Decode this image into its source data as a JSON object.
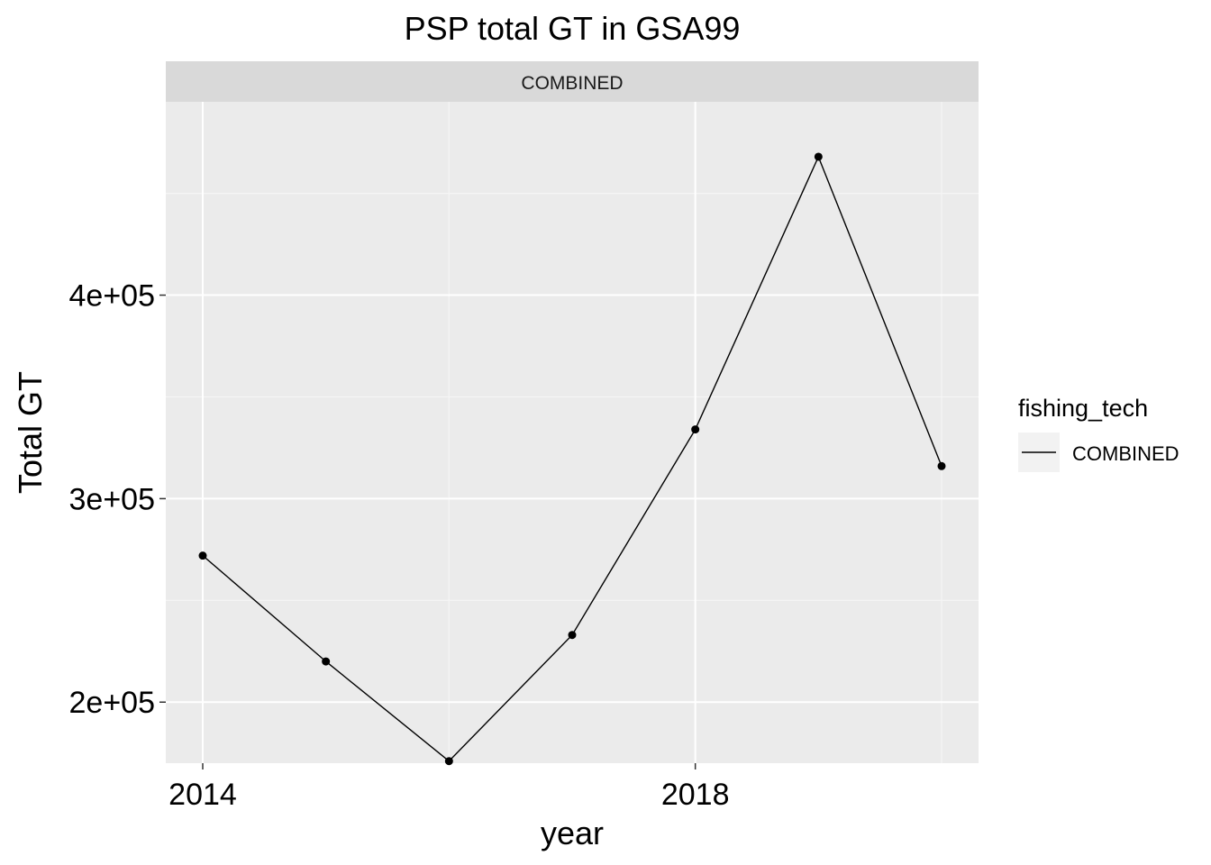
{
  "chart_data": {
    "type": "line",
    "title": "PSP total GT in GSA99",
    "xlabel": "year",
    "ylabel": "Total GT",
    "facet_label": "COMBINED",
    "legend": {
      "title": "fishing_tech",
      "position": "right",
      "entries": [
        "COMBINED"
      ]
    },
    "x_ticks": [
      2014,
      2018
    ],
    "y_ticks": [
      200000,
      300000,
      400000
    ],
    "y_tick_labels": [
      "2e+05",
      "3e+05",
      "4e+05"
    ],
    "xlim": [
      2013.7,
      2020.3
    ],
    "ylim": [
      170000,
      495000
    ],
    "grid": true,
    "series": [
      {
        "x": [
          2014,
          2015,
          2016,
          2017,
          2018,
          2019,
          2020
        ],
        "y": [
          272000,
          220000,
          171000,
          233000,
          334000,
          468000,
          316000
        ],
        "color": "#000000"
      }
    ],
    "colors": {
      "panel_bg": "#EBEBEB",
      "strip_bg": "#D9D9D9",
      "grid_major": "#FFFFFF",
      "grid_minor": "#F5F5F5",
      "line": "#000000"
    }
  }
}
